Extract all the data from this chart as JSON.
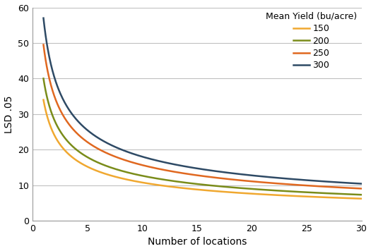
{
  "title": "",
  "xlabel": "Number of locations",
  "ylabel": "LSD .05",
  "xlim": [
    0,
    30
  ],
  "ylim": [
    0,
    60
  ],
  "xticks": [
    0,
    5,
    10,
    15,
    20,
    25,
    30
  ],
  "yticks": [
    0,
    10,
    20,
    30,
    40,
    50,
    60
  ],
  "legend_title": "Mean Yield (bu/acre)",
  "series": [
    {
      "label": "150",
      "color": "#F0A830",
      "lsd_at_1": 34.0
    },
    {
      "label": "200",
      "color": "#7A8C1A",
      "lsd_at_1": 40.0
    },
    {
      "label": "250",
      "color": "#E06820",
      "lsd_at_1": 49.5
    },
    {
      "label": "300",
      "color": "#2E4A65",
      "lsd_at_1": 57.0
    }
  ],
  "grid_color": "#C0C0C0",
  "t_value": 2.101,
  "linewidth": 1.8,
  "xlabel_fontsize": 10,
  "ylabel_fontsize": 10,
  "tick_fontsize": 9,
  "legend_title_fontsize": 9,
  "legend_fontsize": 9
}
